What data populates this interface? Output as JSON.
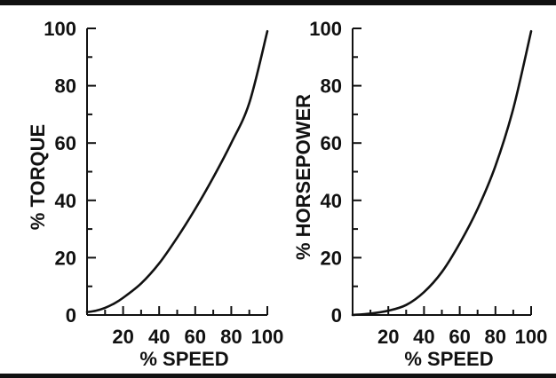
{
  "chart_data": [
    {
      "type": "line",
      "xlabel": "% SPEED",
      "ylabel": "% TORQUE",
      "xlim": [
        0,
        100
      ],
      "ylim": [
        0,
        100
      ],
      "x_ticks": [
        20,
        40,
        60,
        80,
        100
      ],
      "y_ticks": [
        0,
        20,
        40,
        60,
        80,
        100
      ],
      "series": [
        {
          "x": [
            0,
            5,
            10,
            15,
            20,
            30,
            40,
            50,
            60,
            70,
            80,
            90,
            100
          ],
          "y": [
            1,
            1.5,
            2.5,
            4,
            6,
            11,
            18,
            27,
            37,
            48,
            60,
            74,
            99
          ]
        }
      ]
    },
    {
      "type": "line",
      "xlabel": "% SPEED",
      "ylabel": "% HORSEPOWER",
      "xlim": [
        0,
        100
      ],
      "ylim": [
        0,
        100
      ],
      "x_ticks": [
        20,
        40,
        60,
        80,
        100
      ],
      "y_ticks": [
        0,
        20,
        40,
        60,
        80,
        100
      ],
      "series": [
        {
          "x": [
            0,
            10,
            20,
            30,
            40,
            50,
            60,
            70,
            80,
            90,
            100
          ],
          "y": [
            0,
            0.5,
            1.5,
            3.5,
            8,
            15,
            25,
            37,
            52,
            72,
            99
          ]
        }
      ]
    }
  ]
}
